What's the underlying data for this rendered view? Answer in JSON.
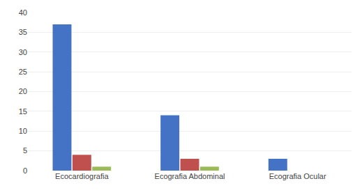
{
  "chart_data": {
    "type": "bar",
    "categories": [
      "Ecocardiografia",
      "Ecografia Abdominal",
      "Ecografia Ocular"
    ],
    "series": [
      {
        "color": "#4472C4",
        "values": [
          37,
          14,
          3
        ]
      },
      {
        "color": "#C0504D",
        "values": [
          4,
          3,
          0
        ]
      },
      {
        "color": "#9BBB59",
        "values": [
          1,
          1,
          0
        ]
      }
    ],
    "ylim": [
      0,
      40
    ],
    "yticks": [
      0,
      5,
      10,
      15,
      20,
      25,
      30,
      35,
      40
    ],
    "grid": true
  }
}
